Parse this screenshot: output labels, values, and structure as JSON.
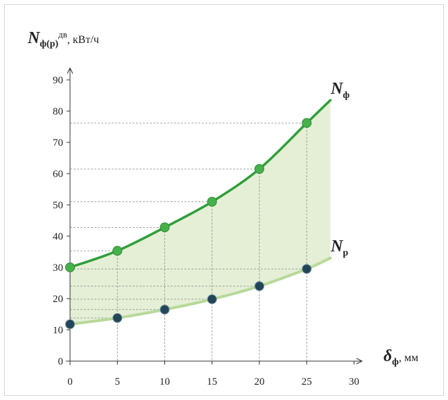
{
  "chart_data": {
    "type": "line",
    "x": [
      0,
      5,
      10,
      15,
      20,
      25
    ],
    "series": [
      {
        "name": "Nф",
        "values": [
          30,
          35.3,
          42.8,
          51,
          61.5,
          76.2
        ],
        "color": "#2f9e3a"
      },
      {
        "name": "Nр",
        "values": [
          11.8,
          13.8,
          16.5,
          19.8,
          24,
          29.5
        ],
        "color": "#b7d999"
      }
    ],
    "curve_extend_x": 27.5,
    "curve_extend_values": [
      83.5,
      33
    ],
    "xlim": [
      0,
      30
    ],
    "ylim": [
      0,
      90
    ],
    "xticks": [
      "0",
      "5",
      "10",
      "15",
      "20",
      "25",
      "30"
    ],
    "yticks": [
      "0",
      "10",
      "20",
      "30",
      "40",
      "50",
      "60",
      "70",
      "80",
      "90"
    ],
    "ylabel": {
      "main": "N",
      "sub": "ф(р)",
      "sup": "дв",
      "unit": ", кВт/ч"
    },
    "xlabel": {
      "main": "δ",
      "sub": "ф",
      "unit": ", мм"
    },
    "series_labels": [
      {
        "main": "N",
        "sub": "ф"
      },
      {
        "main": "N",
        "sub": "р"
      }
    ],
    "grid": "dashed guide lines to data points",
    "fill_between": "#e4efd6",
    "marker_color_lower": "#23455a"
  }
}
